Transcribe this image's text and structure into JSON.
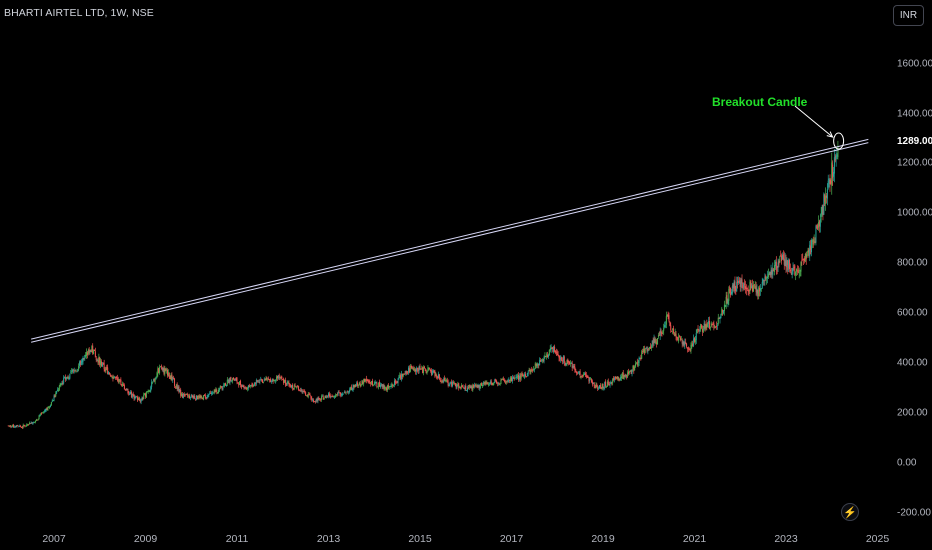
{
  "header": {
    "title": "BHARTI AIRTEL LTD, 1W, NSE"
  },
  "currency_button": {
    "label": "INR"
  },
  "annotation": {
    "text": "Breakout Candle"
  },
  "colors": {
    "up": "#26a69a",
    "up_bright": "#4caf50",
    "down": "#ef5350",
    "trendline": "#d6d6f5",
    "annotation": "#22e02a",
    "background": "#000000"
  },
  "icons": {
    "bolt": "lightning-bolt-icon"
  },
  "chart_data": {
    "type": "candlestick",
    "title": "BHARTI AIRTEL LTD, 1W, NSE",
    "xlabel": "",
    "ylabel": "",
    "ylim": [
      -200,
      1800
    ],
    "xlim": [
      2006.0,
      2025.0
    ],
    "y_ticks": [
      "1600.00",
      "1400.00",
      "1200.00",
      "1000.00",
      "800.00",
      "600.00",
      "400.00",
      "200.00",
      "0.00",
      "-200.00"
    ],
    "x_ticks": [
      "2007",
      "2009",
      "2011",
      "2013",
      "2015",
      "2017",
      "2019",
      "2021",
      "2023",
      "2025"
    ],
    "last_price": "1289.00",
    "trendline": {
      "from": {
        "x": 2006.5,
        "y": 490
      },
      "to": {
        "x": 2024.8,
        "y": 1290
      }
    },
    "breakout_marker": {
      "x": 2024.15,
      "y": 1290
    },
    "price_path": [
      [
        2006.0,
        150
      ],
      [
        2006.3,
        145
      ],
      [
        2006.6,
        170
      ],
      [
        2006.9,
        230
      ],
      [
        2007.2,
        330
      ],
      [
        2007.5,
        380
      ],
      [
        2007.8,
        460
      ],
      [
        2008.1,
        380
      ],
      [
        2008.4,
        330
      ],
      [
        2008.7,
        270
      ],
      [
        2008.9,
        250
      ],
      [
        2009.1,
        300
      ],
      [
        2009.3,
        380
      ],
      [
        2009.5,
        360
      ],
      [
        2009.8,
        270
      ],
      [
        2010.2,
        260
      ],
      [
        2010.5,
        280
      ],
      [
        2010.9,
        340
      ],
      [
        2011.2,
        300
      ],
      [
        2011.5,
        330
      ],
      [
        2011.9,
        340
      ],
      [
        2012.3,
        300
      ],
      [
        2012.7,
        250
      ],
      [
        2013.0,
        270
      ],
      [
        2013.3,
        280
      ],
      [
        2013.8,
        330
      ],
      [
        2014.3,
        300
      ],
      [
        2014.8,
        380
      ],
      [
        2015.2,
        370
      ],
      [
        2015.6,
        320
      ],
      [
        2016.0,
        300
      ],
      [
        2016.5,
        320
      ],
      [
        2016.9,
        330
      ],
      [
        2017.3,
        350
      ],
      [
        2017.7,
        420
      ],
      [
        2017.9,
        460
      ],
      [
        2018.2,
        400
      ],
      [
        2018.6,
        350
      ],
      [
        2018.9,
        300
      ],
      [
        2019.2,
        330
      ],
      [
        2019.6,
        360
      ],
      [
        2019.9,
        450
      ],
      [
        2020.2,
        500
      ],
      [
        2020.4,
        580
      ],
      [
        2020.6,
        500
      ],
      [
        2020.9,
        450
      ],
      [
        2021.1,
        540
      ],
      [
        2021.5,
        560
      ],
      [
        2021.8,
        700
      ],
      [
        2022.1,
        720
      ],
      [
        2022.4,
        680
      ],
      [
        2022.7,
        780
      ],
      [
        2022.95,
        820
      ],
      [
        2023.15,
        760
      ],
      [
        2023.4,
        820
      ],
      [
        2023.7,
        940
      ],
      [
        2023.9,
        1100
      ],
      [
        2024.05,
        1200
      ],
      [
        2024.15,
        1289
      ]
    ]
  }
}
